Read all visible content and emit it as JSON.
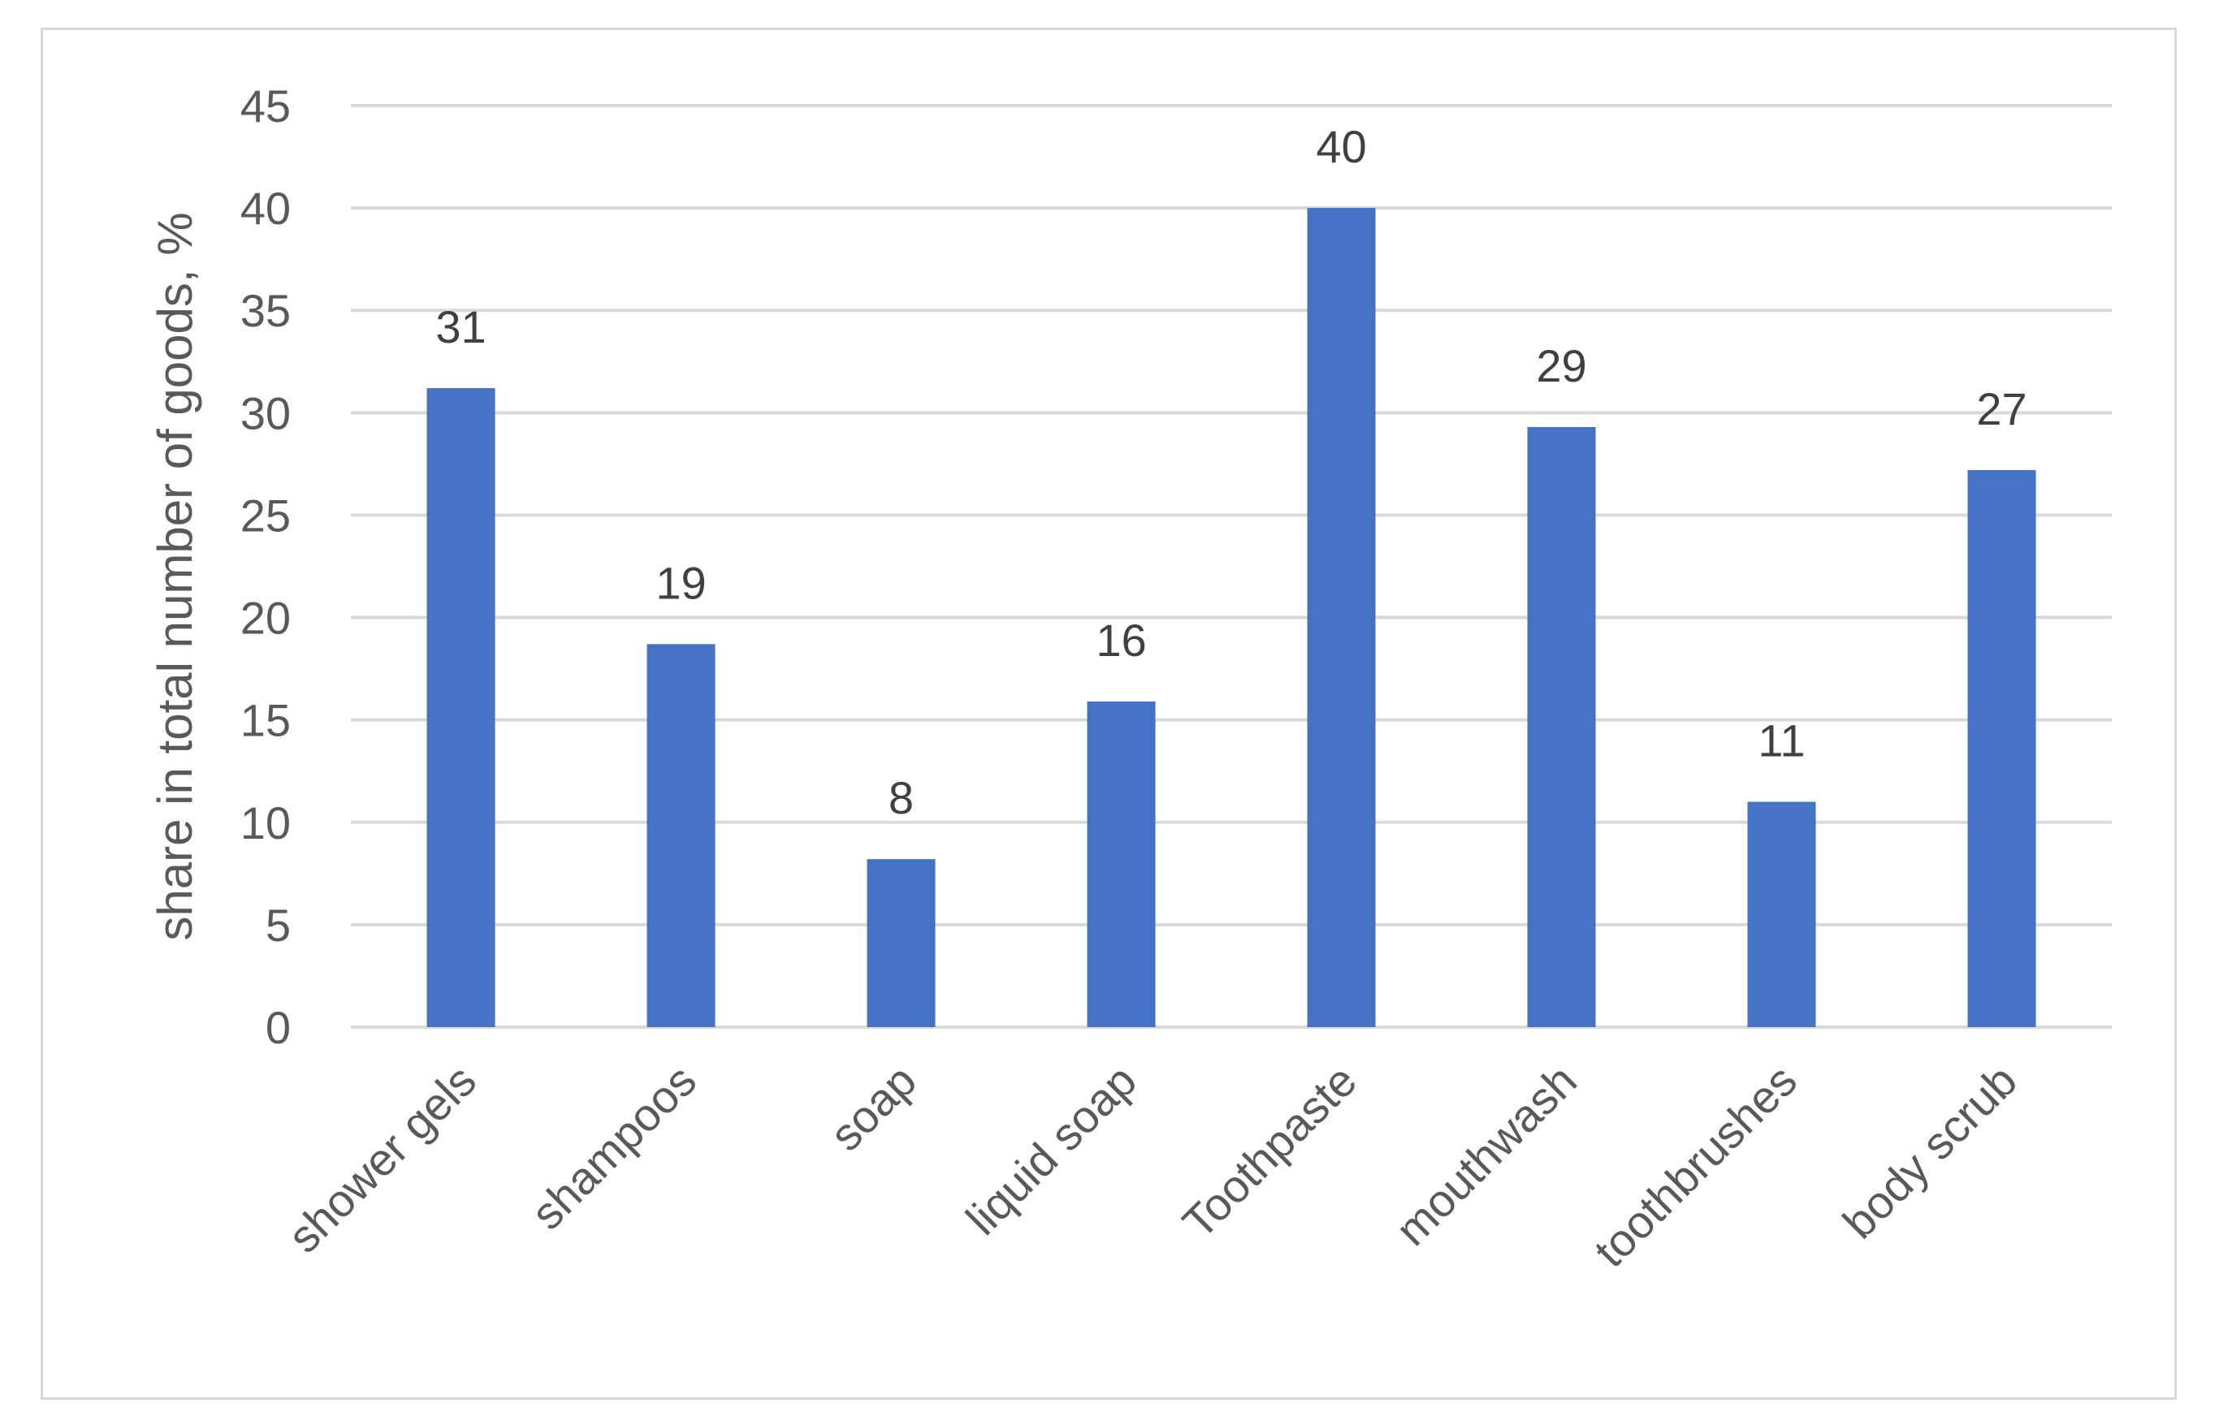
{
  "chart_data": {
    "type": "bar",
    "categories": [
      "shower gels",
      "shampoos",
      "soap",
      "liquid soap",
      "Toothpaste",
      "mouthwash",
      "toothbrushes",
      "body scrub"
    ],
    "values": [
      31.2,
      18.7,
      8.2,
      15.9,
      40.0,
      29.3,
      11.0,
      27.2
    ],
    "data_labels": [
      "31",
      "19",
      "8",
      "16",
      "40",
      "29",
      "11",
      "27"
    ],
    "xlabel": "",
    "ylabel": "share in total number of goods, %",
    "ylim": [
      0,
      45
    ],
    "yticks": [
      0,
      5,
      10,
      15,
      20,
      25,
      30,
      35,
      40,
      45
    ],
    "grid": true,
    "legend": "none",
    "bar_color": "#4472c4",
    "grid_color": "#d9d9d9"
  }
}
